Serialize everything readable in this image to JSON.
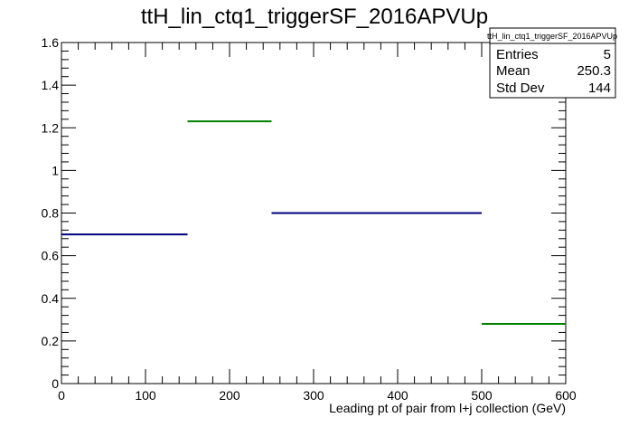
{
  "chart_data": {
    "type": "bar",
    "title": "ttH_lin_ctq1_triggerSF_2016APVUp",
    "xlabel": "Leading pt of pair from l+j collection (GeV)",
    "ylabel": "",
    "xlim": [
      0,
      600
    ],
    "ylim": [
      0,
      1.6
    ],
    "x_ticks": [
      0,
      100,
      200,
      300,
      400,
      500,
      600
    ],
    "y_ticks": [
      0,
      0.2,
      0.4,
      0.6,
      0.8,
      1,
      1.2,
      1.4,
      1.6
    ],
    "x_tick_labels": [
      "0",
      "100",
      "200",
      "300",
      "400",
      "500",
      "600"
    ],
    "y_tick_labels": [
      "0",
      "0.2",
      "0.4",
      "0.6",
      "0.8",
      "1",
      "1.2",
      "1.4",
      "1.6"
    ],
    "grid": false,
    "bins": [
      {
        "x_low": 0,
        "x_high": 150,
        "value": 0.7,
        "color": "#000080"
      },
      {
        "x_low": 150,
        "x_high": 250,
        "value": 1.23,
        "color": "#008000"
      },
      {
        "x_low": 250,
        "x_high": 500,
        "value": 0.8,
        "color": "#000080"
      },
      {
        "x_low": 500,
        "x_high": 600,
        "value": 0.28,
        "color": "#008000"
      }
    ],
    "stats": {
      "name": "ttH_lin_ctq1_triggerSF_2016APVUp",
      "entries_label": "Entries",
      "entries": "5",
      "mean_label": "Mean",
      "mean": "250.3",
      "stddev_label": "Std Dev",
      "stddev": "144",
      "placement": "top-right"
    }
  }
}
